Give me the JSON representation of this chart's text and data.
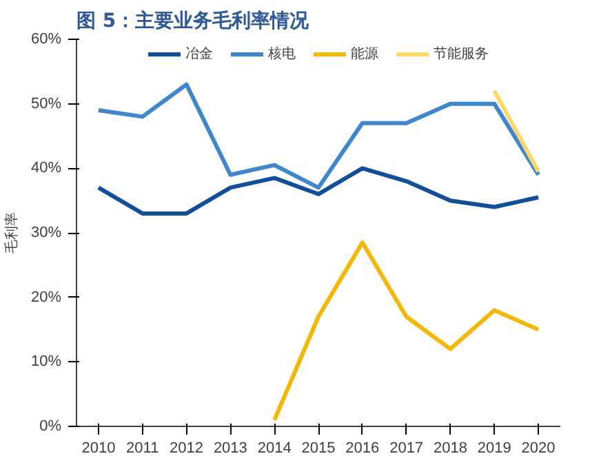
{
  "chart_data": {
    "type": "line",
    "title": "图 5：主要业务毛利率情况",
    "ylabel": "毛利率",
    "categories": [
      "2010",
      "2011",
      "2012",
      "2013",
      "2014",
      "2015",
      "2016",
      "2017",
      "2018",
      "2019",
      "2020"
    ],
    "series": [
      {
        "name": "冶金",
        "color": "#0f4fa0",
        "values": [
          37,
          33,
          33,
          37,
          38.5,
          36,
          40,
          38,
          35,
          34,
          35.5
        ]
      },
      {
        "name": "核电",
        "color": "#3d87d0",
        "values": [
          49,
          48,
          53,
          39,
          40.5,
          37,
          47,
          47,
          50,
          50,
          39
        ]
      },
      {
        "name": "能源",
        "color": "#f5b800",
        "values": [
          null,
          null,
          null,
          null,
          1,
          17,
          28.5,
          17,
          12,
          18,
          15
        ]
      },
      {
        "name": "节能服务",
        "color": "#ffd966",
        "values": [
          null,
          null,
          null,
          null,
          null,
          null,
          null,
          null,
          null,
          52,
          39.5
        ]
      }
    ],
    "ylim": [
      0,
      60
    ],
    "yticks": [
      {
        "value": 0,
        "label": "0%"
      },
      {
        "value": 10,
        "label": "10%"
      },
      {
        "value": 20,
        "label": "20%"
      },
      {
        "value": 30,
        "label": "30%"
      },
      {
        "value": 40,
        "label": "40%"
      },
      {
        "value": 50,
        "label": "50%"
      },
      {
        "value": 60,
        "label": "60%"
      }
    ],
    "grid": false,
    "legend": "top",
    "line_style": "solid",
    "marker": "none"
  }
}
